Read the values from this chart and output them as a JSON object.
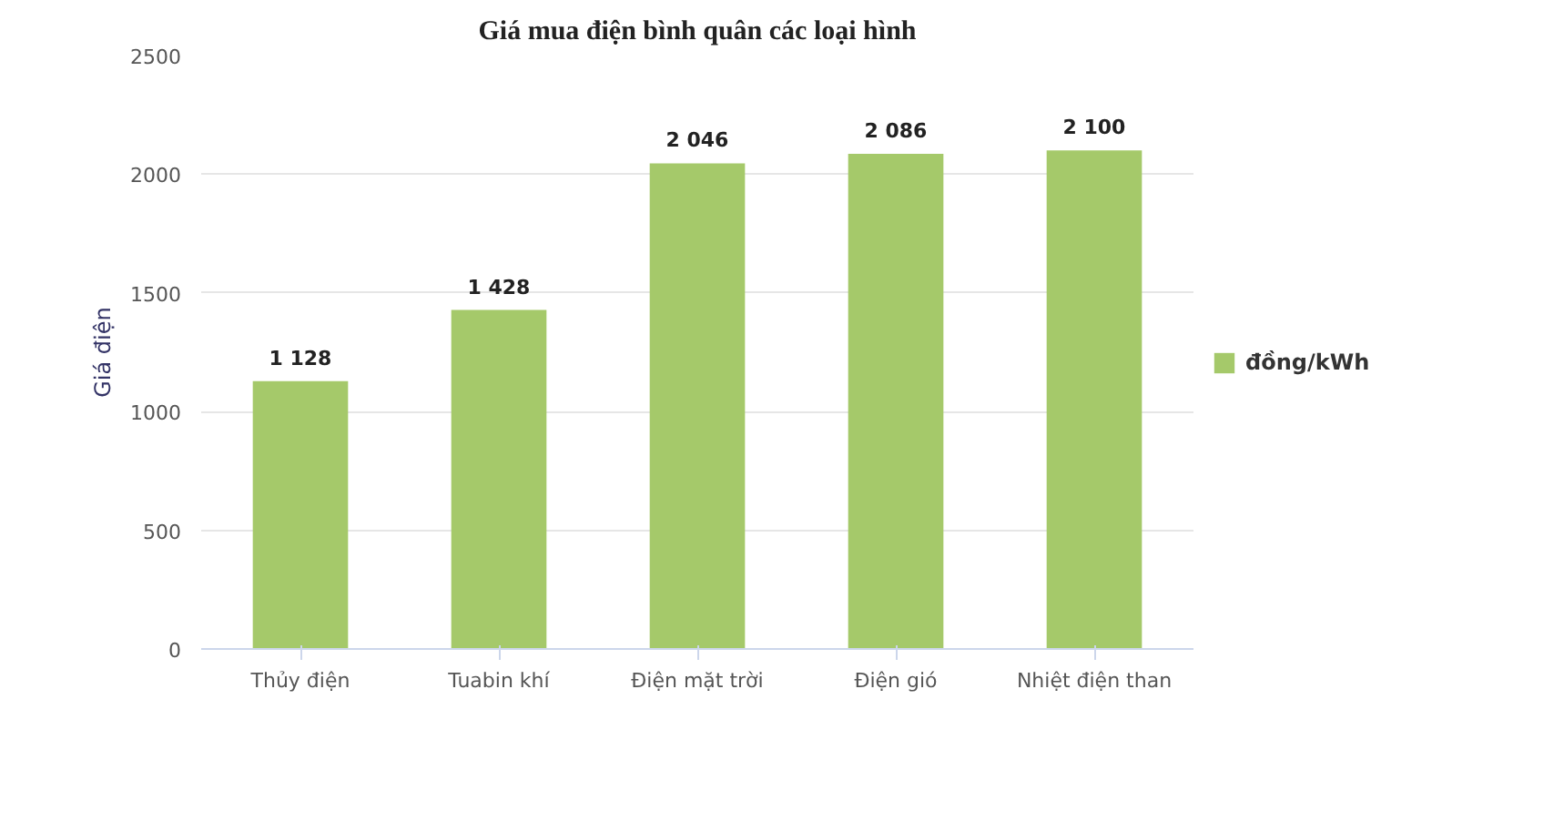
{
  "chart_data": {
    "type": "bar",
    "title": "Giá mua điện bình quân các loại hình",
    "ylabel": "Giá điện",
    "categories": [
      "Thủy điện",
      "Tuabin khí",
      "Điện mặt trời",
      "Điện gió",
      "Nhiệt điện than"
    ],
    "series": [
      {
        "name": "đồng/kWh",
        "color": "#a5c96a",
        "values": [
          1128,
          1428,
          2046,
          2086,
          2100
        ],
        "value_labels": [
          "1 128",
          "1 428",
          "2 046",
          "2 086",
          "2 100"
        ]
      }
    ],
    "ylim": [
      0,
      2500
    ],
    "yticks": [
      0,
      500,
      1000,
      1500,
      2000,
      2500
    ],
    "grid": "y",
    "legend": "right"
  }
}
